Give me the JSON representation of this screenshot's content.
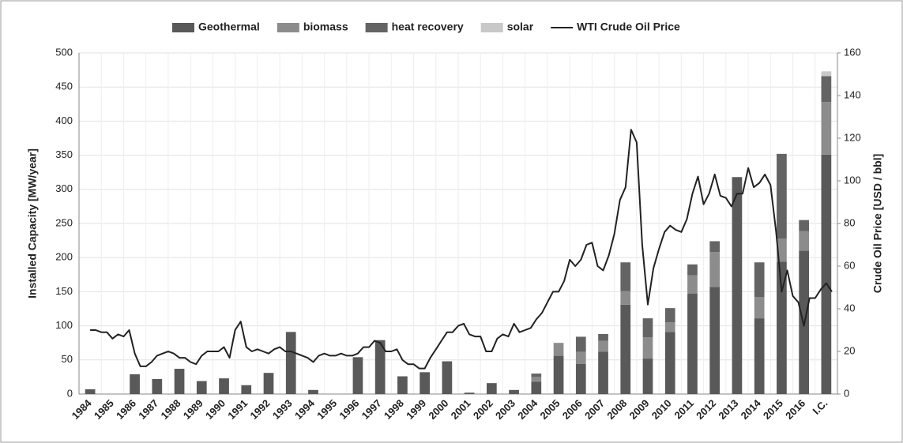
{
  "chart_data": {
    "type": "bar",
    "stacked": true,
    "y_label": "Installed Capacity [MW/year]",
    "y2_label": "Crude Oil Price [USD / bbl]",
    "categories": [
      "1984",
      "1985",
      "1986",
      "1987",
      "1988",
      "1989",
      "1990",
      "1991",
      "1992",
      "1993",
      "1994",
      "1995",
      "1996",
      "1997",
      "1998",
      "1999",
      "2000",
      "2001",
      "2002",
      "2003",
      "2004",
      "2005",
      "2006",
      "2007",
      "2008",
      "2009",
      "2010",
      "2011",
      "2012",
      "2013",
      "2014",
      "2015",
      "2016",
      "I.C."
    ],
    "series": [
      {
        "name": "Geothermal",
        "color": "#595959",
        "values": [
          7,
          0,
          29,
          22,
          37,
          19,
          23,
          13,
          31,
          91,
          6,
          0,
          54,
          79,
          26,
          32,
          48,
          2,
          16,
          6,
          18,
          56,
          44,
          62,
          131,
          52,
          91,
          147,
          157,
          318,
          111,
          194,
          210,
          351
        ]
      },
      {
        "name": "biomass",
        "color": "#8c8c8c",
        "values": [
          0,
          0,
          0,
          0,
          0,
          0,
          0,
          0,
          0,
          0,
          0,
          0,
          0,
          0,
          0,
          0,
          0,
          0,
          0,
          0,
          7,
          19,
          18,
          16,
          20,
          31,
          14,
          27,
          51,
          0,
          31,
          34,
          29,
          77
        ]
      },
      {
        "name": "heat recovery",
        "color": "#646464",
        "values": [
          0,
          0,
          0,
          0,
          0,
          0,
          0,
          0,
          0,
          0,
          0,
          0,
          0,
          0,
          0,
          0,
          0,
          0,
          0,
          0,
          5,
          0,
          22,
          10,
          42,
          28,
          21,
          16,
          16,
          0,
          51,
          124,
          16,
          38
        ]
      },
      {
        "name": "solar",
        "color": "#c8c8c8",
        "values": [
          0,
          0,
          0,
          0,
          0,
          0,
          0,
          0,
          0,
          0,
          0,
          0,
          0,
          0,
          0,
          0,
          0,
          0,
          0,
          0,
          0,
          0,
          0,
          0,
          0,
          0,
          0,
          0,
          0,
          0,
          0,
          0,
          0,
          7
        ]
      }
    ],
    "line": {
      "name": "WTI Crude Oil Price",
      "color": "#222222",
      "axis": "y2",
      "x": [
        1984,
        1984.25,
        1984.5,
        1984.75,
        1985,
        1985.25,
        1985.5,
        1985.75,
        1986,
        1986.25,
        1986.5,
        1986.75,
        1987,
        1987.25,
        1987.5,
        1987.75,
        1988,
        1988.25,
        1988.5,
        1988.75,
        1989,
        1989.25,
        1989.5,
        1989.75,
        1990,
        1990.25,
        1990.5,
        1990.75,
        1991,
        1991.25,
        1991.5,
        1991.75,
        1992,
        1992.25,
        1992.5,
        1992.75,
        1993,
        1993.25,
        1993.5,
        1993.75,
        1994,
        1994.25,
        1994.5,
        1994.75,
        1995,
        1995.25,
        1995.5,
        1995.75,
        1996,
        1996.25,
        1996.5,
        1996.75,
        1997,
        1997.25,
        1997.5,
        1997.75,
        1998,
        1998.25,
        1998.5,
        1998.75,
        1999,
        1999.25,
        1999.5,
        1999.75,
        2000,
        2000.25,
        2000.5,
        2000.75,
        2001,
        2001.25,
        2001.5,
        2001.75,
        2002,
        2002.25,
        2002.5,
        2002.75,
        2003,
        2003.25,
        2003.5,
        2003.75,
        2004,
        2004.25,
        2004.5,
        2004.75,
        2005,
        2005.25,
        2005.5,
        2005.75,
        2006,
        2006.25,
        2006.5,
        2006.75,
        2007,
        2007.25,
        2007.5,
        2007.75,
        2008,
        2008.25,
        2008.5,
        2008.75,
        2009,
        2009.25,
        2009.5,
        2009.75,
        2010,
        2010.25,
        2010.5,
        2010.75,
        2011,
        2011.25,
        2011.5,
        2011.75,
        2012,
        2012.25,
        2012.5,
        2012.75,
        2013,
        2013.25,
        2013.5,
        2013.75,
        2014,
        2014.25,
        2014.5,
        2014.75,
        2015,
        2015.25,
        2015.5,
        2015.75,
        2016,
        2016.25,
        2016.5,
        2016.75,
        2017,
        2017.25
      ],
      "values": [
        30,
        30,
        29,
        29,
        26,
        28,
        27,
        30,
        19,
        13,
        13,
        15,
        18,
        19,
        20,
        19,
        17,
        17,
        15,
        14,
        18,
        20,
        20,
        20,
        22,
        17,
        30,
        34,
        22,
        20,
        21,
        20,
        19,
        21,
        22,
        20,
        20,
        19,
        18,
        17,
        15,
        18,
        19,
        18,
        18,
        19,
        18,
        18,
        19,
        22,
        22,
        25,
        24,
        20,
        20,
        21,
        16,
        14,
        14,
        12,
        12,
        17,
        21,
        25,
        29,
        29,
        32,
        33,
        28,
        27,
        27,
        20,
        20,
        26,
        28,
        27,
        33,
        29,
        30,
        31,
        35,
        38,
        43,
        48,
        48,
        53,
        63,
        60,
        63,
        70,
        71,
        60,
        58,
        65,
        75,
        91,
        97,
        124,
        118,
        70,
        42,
        59,
        68,
        76,
        79,
        77,
        76,
        82,
        94,
        102,
        89,
        94,
        103,
        93,
        92,
        88,
        94,
        94,
        106,
        97,
        99,
        103,
        98,
        76,
        48,
        58,
        46,
        43,
        32,
        45,
        45,
        49,
        52,
        48
      ]
    },
    "ylim": [
      0,
      500
    ],
    "yticks": [
      0,
      50,
      100,
      150,
      200,
      250,
      300,
      350,
      400,
      450,
      500
    ],
    "y2lim": [
      0,
      160
    ],
    "y2ticks": [
      0,
      20,
      40,
      60,
      80,
      100,
      120,
      140,
      160
    ],
    "grid": true,
    "legend": "top"
  }
}
